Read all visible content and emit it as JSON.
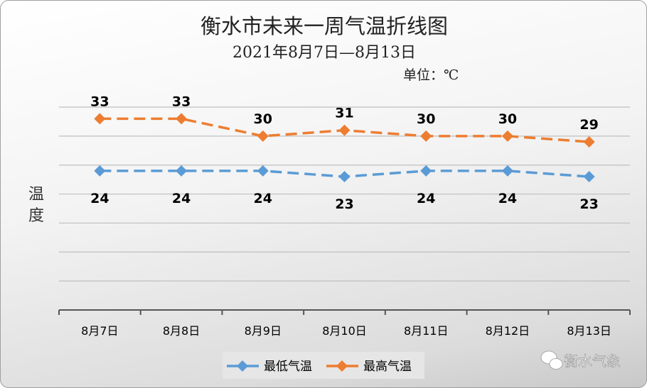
{
  "chart_data": {
    "type": "line",
    "title": "衡水市未来一周气温折线图",
    "subtitle": "2021年8月7日—8月13日",
    "unit": "单位：℃",
    "ylabel": "温度",
    "xlabel": "",
    "categories": [
      "8月7日",
      "8月8日",
      "8月9日",
      "8月10日",
      "8月11日",
      "8月12日",
      "8月13日"
    ],
    "ylim": [
      0,
      35
    ],
    "ytick_step": 5,
    "grid": true,
    "legend_position": "bottom",
    "series": [
      {
        "name": "最低气温",
        "values": [
          24,
          24,
          24,
          23,
          24,
          24,
          23
        ],
        "color": "#5b9bd5",
        "label_position": "below"
      },
      {
        "name": "最高气温",
        "values": [
          33,
          33,
          30,
          31,
          30,
          30,
          29
        ],
        "color": "#ed7d31",
        "label_position": "above"
      }
    ]
  },
  "watermark": "衡水气象"
}
